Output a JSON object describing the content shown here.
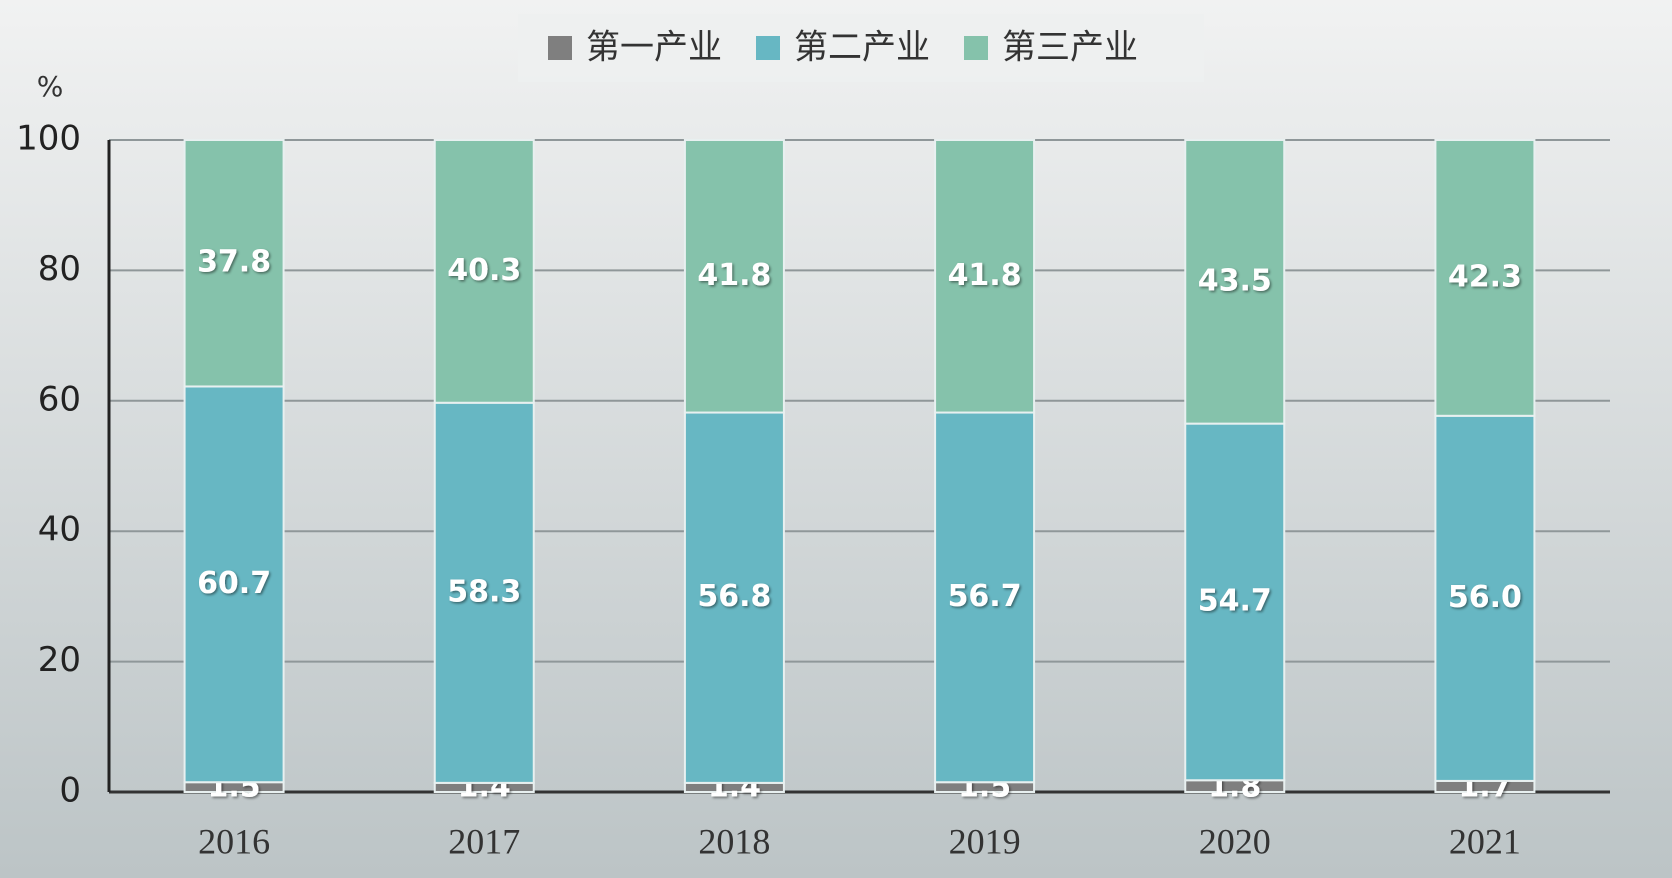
{
  "chart_data": {
    "type": "stacked_bar",
    "y_label": "%",
    "categories": [
      "2016",
      "2017",
      "2018",
      "2019",
      "2020",
      "2021"
    ],
    "series": [
      {
        "name": "第一产业",
        "color": "#7f7f7f",
        "values": [
          1.5,
          1.4,
          1.4,
          1.5,
          1.8,
          1.7
        ]
      },
      {
        "name": "第二产业",
        "color": "#67b7c3",
        "values": [
          60.7,
          58.3,
          56.8,
          56.7,
          54.7,
          56.0
        ],
        "value_labels": [
          "60.7",
          "58.3",
          "56.8",
          "56.7",
          "54.7",
          "56.0"
        ]
      },
      {
        "name": "第三产业",
        "color": "#85c2ab",
        "values": [
          37.8,
          40.3,
          41.8,
          41.8,
          43.5,
          42.3
        ]
      }
    ],
    "ylim": [
      0,
      100
    ],
    "yticks": [
      0,
      20,
      40,
      60,
      80,
      100
    ],
    "grid": true,
    "legend": "top"
  }
}
